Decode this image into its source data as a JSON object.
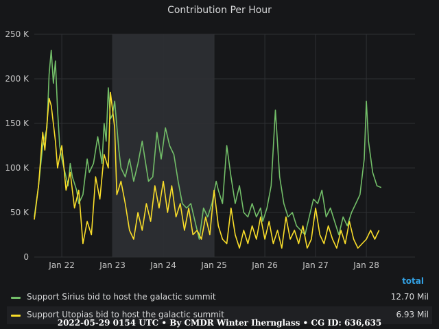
{
  "chart_data": {
    "type": "line",
    "title": "Contribution Per Hour",
    "ylim": [
      0,
      250000
    ],
    "y_ticks": [
      {
        "value": 0,
        "label": "0"
      },
      {
        "value": 50000,
        "label": "50 K"
      },
      {
        "value": 100000,
        "label": "100 K"
      },
      {
        "value": 150000,
        "label": "150 K"
      },
      {
        "value": 200000,
        "label": "200 K"
      },
      {
        "value": 250000,
        "label": "250 K"
      }
    ],
    "xlim": [
      "2022-05-21T11:00",
      "2022-05-28T23:00"
    ],
    "x_ticks": [
      {
        "value": "2022-05-22T00:00",
        "label": "Jan 22"
      },
      {
        "value": "2022-05-23T00:00",
        "label": "Jan 23"
      },
      {
        "value": "2022-05-24T00:00",
        "label": "Jan 24"
      },
      {
        "value": "2022-05-25T00:00",
        "label": "Jan 25"
      },
      {
        "value": "2022-05-26T00:00",
        "label": "Jan 26"
      },
      {
        "value": "2022-05-27T00:00",
        "label": "Jan 27"
      },
      {
        "value": "2022-05-28T00:00",
        "label": "Jan 28"
      }
    ],
    "highlight_range": [
      "2022-05-23T00:00",
      "2022-05-25T00:00"
    ],
    "grid": true,
    "legend_position": "bottom",
    "series": [
      {
        "name": "Support Sirius bid to host the galactic summit",
        "color": "#73bf69",
        "points": [
          [
            "2022-05-21T11:00",
            45000
          ],
          [
            "2022-05-21T13:00",
            80000
          ],
          [
            "2022-05-21T15:00",
            125000
          ],
          [
            "2022-05-21T17:00",
            145000
          ],
          [
            "2022-05-21T18:00",
            205000
          ],
          [
            "2022-05-21T19:00",
            232000
          ],
          [
            "2022-05-21T20:00",
            195000
          ],
          [
            "2022-05-21T21:00",
            220000
          ],
          [
            "2022-05-21T22:00",
            165000
          ],
          [
            "2022-05-21T23:00",
            125000
          ],
          [
            "2022-05-22T00:00",
            110000
          ],
          [
            "2022-05-22T01:00",
            100000
          ],
          [
            "2022-05-22T03:00",
            80000
          ],
          [
            "2022-05-22T04:00",
            105000
          ],
          [
            "2022-05-22T05:00",
            90000
          ],
          [
            "2022-05-22T07:00",
            75000
          ],
          [
            "2022-05-22T08:00",
            60000
          ],
          [
            "2022-05-22T10:00",
            70000
          ],
          [
            "2022-05-22T12:00",
            110000
          ],
          [
            "2022-05-22T13:00",
            95000
          ],
          [
            "2022-05-22T15:00",
            105000
          ],
          [
            "2022-05-22T17:00",
            135000
          ],
          [
            "2022-05-22T19:00",
            105000
          ],
          [
            "2022-05-22T21:00",
            130000
          ],
          [
            "2022-05-22T23:00",
            155000
          ],
          [
            "2022-05-23T00:00",
            160000
          ],
          [
            "2022-05-22T20:00",
            150000
          ],
          [
            "2022-05-22T22:00",
            190000
          ],
          [
            "2022-05-23T01:00",
            175000
          ],
          [
            "2022-05-23T03:00",
            120000
          ],
          [
            "2022-05-23T04:00",
            100000
          ],
          [
            "2022-05-23T06:00",
            90000
          ],
          [
            "2022-05-23T08:00",
            110000
          ],
          [
            "2022-05-23T10:00",
            85000
          ],
          [
            "2022-05-23T12:00",
            105000
          ],
          [
            "2022-05-23T14:00",
            130000
          ],
          [
            "2022-05-23T16:00",
            100000
          ],
          [
            "2022-05-23T17:00",
            85000
          ],
          [
            "2022-05-23T19:00",
            90000
          ],
          [
            "2022-05-23T21:00",
            140000
          ],
          [
            "2022-05-23T23:00",
            110000
          ],
          [
            "2022-05-24T01:00",
            145000
          ],
          [
            "2022-05-24T03:00",
            125000
          ],
          [
            "2022-05-24T05:00",
            115000
          ],
          [
            "2022-05-24T07:00",
            85000
          ],
          [
            "2022-05-24T09:00",
            60000
          ],
          [
            "2022-05-24T11:00",
            55000
          ],
          [
            "2022-05-24T13:00",
            60000
          ],
          [
            "2022-05-24T15:00",
            40000
          ],
          [
            "2022-05-24T17:00",
            20000
          ],
          [
            "2022-05-24T19:00",
            55000
          ],
          [
            "2022-05-24T21:00",
            45000
          ],
          [
            "2022-05-24T23:00",
            60000
          ],
          [
            "2022-05-25T01:00",
            85000
          ],
          [
            "2022-05-25T02:00",
            75000
          ],
          [
            "2022-05-25T04:00",
            60000
          ],
          [
            "2022-05-25T06:00",
            125000
          ],
          [
            "2022-05-25T08:00",
            90000
          ],
          [
            "2022-05-25T10:00",
            60000
          ],
          [
            "2022-05-25T12:00",
            80000
          ],
          [
            "2022-05-25T14:00",
            50000
          ],
          [
            "2022-05-25T16:00",
            45000
          ],
          [
            "2022-05-25T18:00",
            60000
          ],
          [
            "2022-05-25T20:00",
            45000
          ],
          [
            "2022-05-25T22:00",
            55000
          ],
          [
            "2022-05-25T23:00",
            40000
          ],
          [
            "2022-05-26T01:00",
            55000
          ],
          [
            "2022-05-26T03:00",
            80000
          ],
          [
            "2022-05-26T05:00",
            165000
          ],
          [
            "2022-05-26T07:00",
            90000
          ],
          [
            "2022-05-26T09:00",
            60000
          ],
          [
            "2022-05-26T11:00",
            45000
          ],
          [
            "2022-05-26T13:00",
            50000
          ],
          [
            "2022-05-26T15:00",
            35000
          ],
          [
            "2022-05-26T17:00",
            30000
          ],
          [
            "2022-05-26T19:00",
            25000
          ],
          [
            "2022-05-26T21:00",
            45000
          ],
          [
            "2022-05-26T23:00",
            65000
          ],
          [
            "2022-05-27T01:00",
            60000
          ],
          [
            "2022-05-27T03:00",
            75000
          ],
          [
            "2022-05-27T05:00",
            45000
          ],
          [
            "2022-05-27T07:00",
            55000
          ],
          [
            "2022-05-27T09:00",
            40000
          ],
          [
            "2022-05-27T11:00",
            25000
          ],
          [
            "2022-05-27T13:00",
            45000
          ],
          [
            "2022-05-27T15:00",
            35000
          ],
          [
            "2022-05-27T17:00",
            50000
          ],
          [
            "2022-05-27T19:00",
            60000
          ],
          [
            "2022-05-27T21:00",
            70000
          ],
          [
            "2022-05-27T23:00",
            110000
          ],
          [
            "2022-05-28T00:00",
            175000
          ],
          [
            "2022-05-28T01:00",
            130000
          ],
          [
            "2022-05-28T03:00",
            95000
          ],
          [
            "2022-05-28T05:00",
            80000
          ],
          [
            "2022-05-28T07:00",
            78000
          ]
        ],
        "total": "12.70 Mil"
      },
      {
        "name": "Support Utopias bid to host the galactic summit",
        "color": "#fade2a",
        "points": [
          [
            "2022-05-21T11:00",
            42000
          ],
          [
            "2022-05-21T13:00",
            80000
          ],
          [
            "2022-05-21T15:00",
            140000
          ],
          [
            "2022-05-21T16:00",
            120000
          ],
          [
            "2022-05-21T17:00",
            150000
          ],
          [
            "2022-05-21T18:00",
            178000
          ],
          [
            "2022-05-21T19:00",
            170000
          ],
          [
            "2022-05-21T21:00",
            130000
          ],
          [
            "2022-05-21T22:00",
            100000
          ],
          [
            "2022-05-22T00:00",
            125000
          ],
          [
            "2022-05-22T02:00",
            75000
          ],
          [
            "2022-05-22T04:00",
            95000
          ],
          [
            "2022-05-22T06:00",
            55000
          ],
          [
            "2022-05-22T08:00",
            75000
          ],
          [
            "2022-05-22T10:00",
            15000
          ],
          [
            "2022-05-22T12:00",
            40000
          ],
          [
            "2022-05-22T14:00",
            25000
          ],
          [
            "2022-05-22T16:00",
            90000
          ],
          [
            "2022-05-22T18:00",
            65000
          ],
          [
            "2022-05-22T20:00",
            115000
          ],
          [
            "2022-05-22T22:00",
            100000
          ],
          [
            "2022-05-22T23:00",
            185000
          ],
          [
            "2022-05-23T01:00",
            145000
          ],
          [
            "2022-05-23T02:00",
            70000
          ],
          [
            "2022-05-23T04:00",
            85000
          ],
          [
            "2022-05-23T06:00",
            60000
          ],
          [
            "2022-05-23T08:00",
            30000
          ],
          [
            "2022-05-23T10:00",
            20000
          ],
          [
            "2022-05-23T12:00",
            50000
          ],
          [
            "2022-05-23T14:00",
            30000
          ],
          [
            "2022-05-23T16:00",
            60000
          ],
          [
            "2022-05-23T18:00",
            40000
          ],
          [
            "2022-05-23T20:00",
            80000
          ],
          [
            "2022-05-23T22:00",
            55000
          ],
          [
            "2022-05-24T00:00",
            85000
          ],
          [
            "2022-05-24T02:00",
            50000
          ],
          [
            "2022-05-24T04:00",
            80000
          ],
          [
            "2022-05-24T06:00",
            45000
          ],
          [
            "2022-05-24T08:00",
            60000
          ],
          [
            "2022-05-24T10:00",
            30000
          ],
          [
            "2022-05-24T12:00",
            55000
          ],
          [
            "2022-05-24T14:00",
            25000
          ],
          [
            "2022-05-24T16:00",
            30000
          ],
          [
            "2022-05-24T18:00",
            20000
          ],
          [
            "2022-05-24T20:00",
            45000
          ],
          [
            "2022-05-24T22:00",
            25000
          ],
          [
            "2022-05-25T00:00",
            75000
          ],
          [
            "2022-05-25T02:00",
            35000
          ],
          [
            "2022-05-25T04:00",
            20000
          ],
          [
            "2022-05-25T06:00",
            15000
          ],
          [
            "2022-05-25T08:00",
            55000
          ],
          [
            "2022-05-25T10:00",
            25000
          ],
          [
            "2022-05-25T12:00",
            10000
          ],
          [
            "2022-05-25T14:00",
            30000
          ],
          [
            "2022-05-25T16:00",
            15000
          ],
          [
            "2022-05-25T18:00",
            35000
          ],
          [
            "2022-05-25T20:00",
            20000
          ],
          [
            "2022-05-25T22:00",
            45000
          ],
          [
            "2022-05-26T00:00",
            20000
          ],
          [
            "2022-05-26T02:00",
            40000
          ],
          [
            "2022-05-26T04:00",
            15000
          ],
          [
            "2022-05-26T06:00",
            30000
          ],
          [
            "2022-05-26T08:00",
            10000
          ],
          [
            "2022-05-26T10:00",
            45000
          ],
          [
            "2022-05-26T12:00",
            20000
          ],
          [
            "2022-05-26T14:00",
            30000
          ],
          [
            "2022-05-26T16:00",
            15000
          ],
          [
            "2022-05-26T18:00",
            35000
          ],
          [
            "2022-05-26T20:00",
            10000
          ],
          [
            "2022-05-26T22:00",
            20000
          ],
          [
            "2022-05-27T00:00",
            55000
          ],
          [
            "2022-05-27T02:00",
            25000
          ],
          [
            "2022-05-27T04:00",
            15000
          ],
          [
            "2022-05-27T06:00",
            35000
          ],
          [
            "2022-05-27T08:00",
            20000
          ],
          [
            "2022-05-27T10:00",
            10000
          ],
          [
            "2022-05-27T12:00",
            30000
          ],
          [
            "2022-05-27T14:00",
            15000
          ],
          [
            "2022-05-27T16:00",
            40000
          ],
          [
            "2022-05-27T18:00",
            20000
          ],
          [
            "2022-05-27T20:00",
            10000
          ],
          [
            "2022-05-27T22:00",
            15000
          ],
          [
            "2022-05-28T00:00",
            20000
          ],
          [
            "2022-05-28T02:00",
            30000
          ],
          [
            "2022-05-28T04:00",
            20000
          ],
          [
            "2022-05-28T06:00",
            30000
          ]
        ],
        "total": "6.93 Mil"
      }
    ]
  },
  "legend": {
    "header": "total",
    "rows": [
      {
        "label": "Support Sirius bid to host the galactic summit",
        "total": "12.70 Mil",
        "color": "#73bf69"
      },
      {
        "label": "Support Utopias bid to host the galactic summit",
        "total": "6.93 Mil",
        "color": "#fade2a"
      }
    ]
  },
  "footer": "2022-05-29 0154 UTC • By CMDR Winter Ihernglass • CG ID: 636,635"
}
